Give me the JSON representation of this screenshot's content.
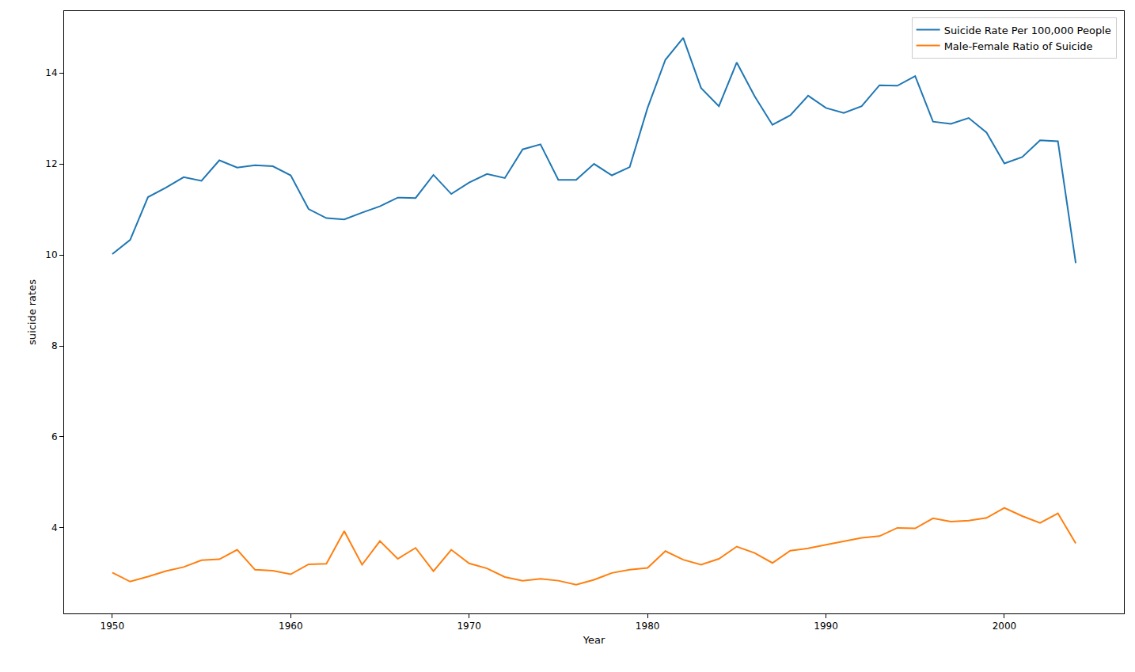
{
  "chart_data": {
    "type": "line",
    "x_label": "Year",
    "y_label": "suicide rates",
    "x": [
      1950,
      1951,
      1952,
      1953,
      1954,
      1955,
      1956,
      1957,
      1958,
      1959,
      1960,
      1961,
      1962,
      1963,
      1964,
      1965,
      1966,
      1967,
      1968,
      1969,
      1970,
      1971,
      1972,
      1973,
      1974,
      1975,
      1976,
      1977,
      1978,
      1979,
      1980,
      1981,
      1982,
      1983,
      1984,
      1985,
      1986,
      1987,
      1988,
      1989,
      1990,
      1991,
      1992,
      1993,
      1994,
      1995,
      1996,
      1997,
      1998,
      1999,
      2000,
      2001,
      2002,
      2003,
      2004
    ],
    "series": [
      {
        "name": "Suicide Rate Per 100,000 People",
        "color": "#1f77b4",
        "values": [
          10.02,
          10.33,
          11.27,
          11.48,
          11.71,
          11.63,
          12.08,
          11.92,
          11.97,
          11.95,
          11.75,
          11.01,
          10.81,
          10.78,
          10.93,
          11.07,
          11.26,
          11.25,
          11.76,
          11.34,
          11.59,
          11.78,
          11.69,
          12.32,
          12.43,
          11.65,
          11.65,
          12.0,
          11.75,
          11.93,
          13.23,
          14.29,
          14.77,
          13.67,
          13.27,
          14.23,
          13.49,
          12.86,
          13.07,
          13.5,
          13.23,
          13.12,
          13.27,
          13.73,
          13.72,
          13.93,
          12.93,
          12.88,
          13.01,
          12.69,
          12.01,
          12.15,
          12.52,
          12.5,
          9.82
        ]
      },
      {
        "name": "Male-Female Ratio of Suicide",
        "color": "#ff7f0e",
        "values": [
          3.02,
          2.82,
          2.93,
          3.05,
          3.14,
          3.29,
          3.31,
          3.52,
          3.08,
          3.06,
          2.98,
          3.2,
          3.21,
          3.93,
          3.19,
          3.71,
          3.32,
          3.56,
          3.05,
          3.52,
          3.22,
          3.11,
          2.92,
          2.84,
          2.88,
          2.84,
          2.75,
          2.86,
          3.01,
          3.08,
          3.12,
          3.49,
          3.3,
          3.19,
          3.32,
          3.59,
          3.45,
          3.23,
          3.5,
          3.55,
          3.63,
          3.71,
          3.78,
          3.82,
          4.0,
          3.99,
          4.21,
          4.14,
          4.16,
          4.22,
          4.44,
          4.26,
          4.11,
          4.32,
          3.66
        ]
      }
    ],
    "xlim": [
      1947.3,
      2006.7
    ],
    "xticks": [
      1950,
      1960,
      1970,
      1980,
      1990,
      2000
    ],
    "ylim": [
      2.12,
      15.36
    ],
    "yticks": [
      4,
      6,
      8,
      10,
      12,
      14
    ],
    "grid": false,
    "legend": "upper right"
  }
}
